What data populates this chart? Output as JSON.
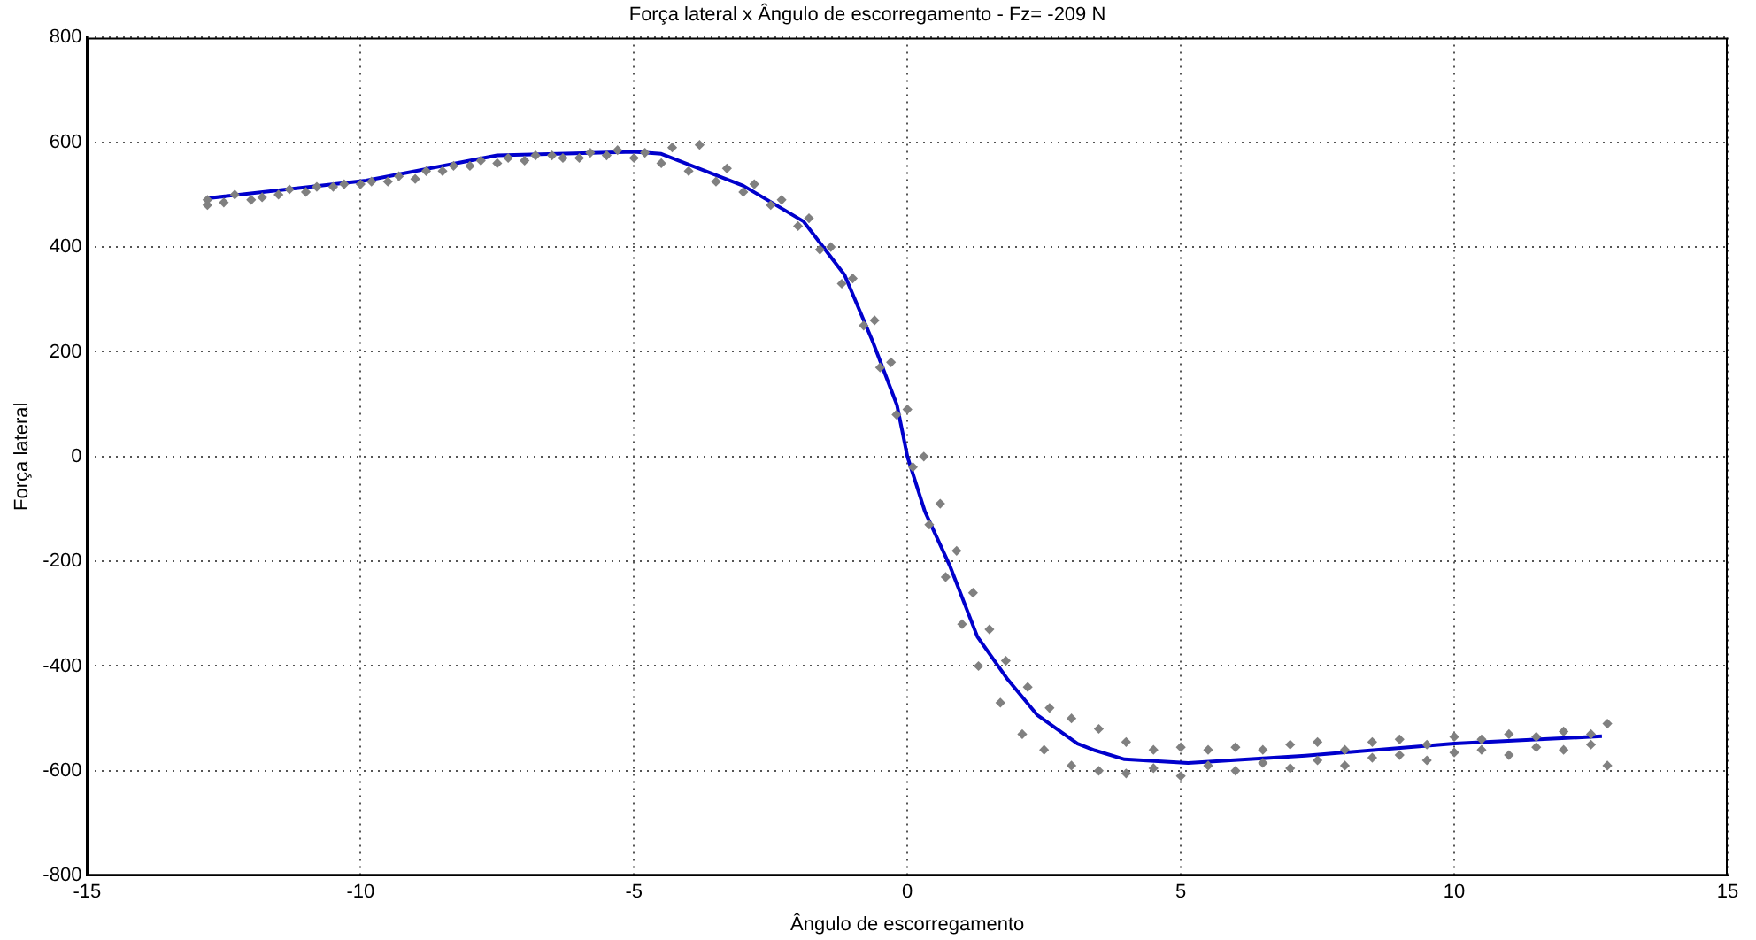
{
  "chart_data": {
    "type": "scatter",
    "title": "Força lateral x Ângulo de escorregamento - Fz= -209 N",
    "xlabel": "Ângulo de escorregamento",
    "ylabel": "Força lateral",
    "xlim": [
      -15,
      15
    ],
    "xticks": [
      -15,
      -10,
      -5,
      0,
      5,
      10,
      15
    ],
    "ylim": [
      -800,
      800
    ],
    "yticks": [
      -800,
      -600,
      -400,
      -200,
      0,
      200,
      400,
      600,
      800
    ],
    "grid": true,
    "series": [
      {
        "marker": "diamond",
        "color": "#808080",
        "x": [
          -12.8,
          -12.3,
          -11.8,
          -11.3,
          -10.8,
          -10.3,
          -9.8,
          -9.3,
          -8.8,
          -8.3,
          -7.8,
          -7.3,
          -6.8,
          -6.3,
          -5.8,
          -5.3,
          -4.8,
          -4.3,
          -3.8,
          -3.3,
          -2.8,
          -2.3,
          -1.8,
          -1.4,
          -1.0,
          -0.6,
          -0.3,
          0,
          0.3,
          0.6,
          0.9,
          1.2,
          1.5,
          1.8,
          2.2,
          2.6,
          3.0,
          3.5,
          4.0,
          4.5,
          5.0,
          5.5,
          6.0,
          6.5,
          7.0,
          7.5,
          8.0,
          8.5,
          9.0,
          9.5,
          10.0,
          10.5,
          11.0,
          11.5,
          12.0,
          12.5,
          12.8,
          -12.8,
          -12.5,
          -12.0,
          -11.5,
          -11.0,
          -10.5,
          -10.0,
          -9.5,
          -9.0,
          -8.5,
          -8.0,
          -7.5,
          -7.0,
          -6.5,
          -6.0,
          -5.5,
          -5.0,
          -4.5,
          -4.0,
          -3.5,
          -3.0,
          -2.5,
          -2.0,
          -1.6,
          -1.2,
          -0.8,
          -0.5,
          -0.2,
          0.1,
          0.4,
          0.7,
          1.0,
          1.3,
          1.7,
          2.1,
          2.5,
          3.0,
          3.5,
          4.0,
          4.5,
          5.0,
          5.5,
          6.0,
          6.5,
          7.0,
          7.5,
          8.0,
          8.5,
          9.0,
          9.5,
          10.0,
          10.5,
          11.0,
          11.5,
          12.0,
          12.5,
          12.8
        ],
        "values": [
          490,
          500,
          495,
          510,
          515,
          520,
          525,
          535,
          545,
          555,
          565,
          570,
          575,
          570,
          580,
          585,
          580,
          590,
          595,
          550,
          520,
          490,
          455,
          400,
          340,
          260,
          180,
          90,
          0,
          -90,
          -180,
          -260,
          -330,
          -390,
          -440,
          -480,
          -500,
          -520,
          -545,
          -560,
          -555,
          -560,
          -555,
          -560,
          -550,
          -545,
          -560,
          -545,
          -540,
          -550,
          -535,
          -540,
          -530,
          -535,
          -525,
          -530,
          -510,
          480,
          485,
          490,
          500,
          505,
          515,
          520,
          525,
          530,
          545,
          555,
          560,
          565,
          575,
          570,
          575,
          570,
          560,
          545,
          525,
          505,
          480,
          440,
          395,
          330,
          250,
          170,
          80,
          -20,
          -130,
          -230,
          -320,
          -400,
          -470,
          -530,
          -560,
          -590,
          -600,
          -605,
          -595,
          -610,
          -590,
          -600,
          -585,
          -595,
          -580,
          -590,
          -575,
          -570,
          -580,
          -565,
          -560,
          -570,
          -555,
          -560,
          -550,
          -590
        ]
      },
      {
        "type": "line",
        "marker": "none",
        "line_style": "solid",
        "color": "#0000cc",
        "x": [
          -12.8,
          -9.9,
          -7.5,
          -5.0,
          -4.5,
          -3.0,
          -1.9,
          -1.15,
          -0.64,
          -0.19,
          0,
          0.32,
          0.77,
          1.28,
          1.83,
          2.37,
          3.11,
          3.43,
          3.97,
          5.13,
          7.28,
          10.0,
          12.7
        ],
        "values": [
          493,
          527,
          575,
          582,
          578,
          517,
          449,
          347,
          221,
          98,
          0,
          -105,
          -207,
          -344,
          -425,
          -493,
          -548,
          -561,
          -578,
          -585,
          -571,
          -548,
          -534
        ]
      }
    ]
  }
}
